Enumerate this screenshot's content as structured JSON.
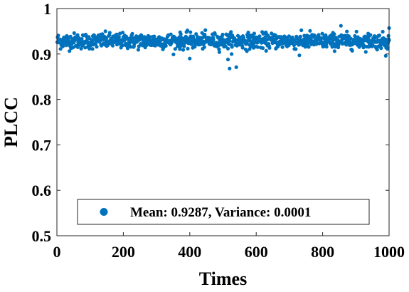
{
  "chart_data": {
    "type": "scatter",
    "xlabel": "Times",
    "ylabel": "PLCC",
    "xlim": [
      0,
      1000
    ],
    "ylim": [
      0.5,
      1.0
    ],
    "xticks": [
      0,
      200,
      400,
      600,
      800,
      1000
    ],
    "xtick_labels": [
      "0",
      "200",
      "400",
      "600",
      "800",
      "1000"
    ],
    "yticks": [
      0.5,
      0.6,
      0.7,
      0.8,
      0.9,
      1.0
    ],
    "ytick_labels": [
      "0.5",
      "0.6",
      "0.7",
      "0.8",
      "0.9",
      "1"
    ],
    "grid": false,
    "box": true,
    "legend_position": "bottom-right",
    "marker_color": "#0072BD",
    "series": [
      {
        "name": "Mean: 0.9287, Variance: 0.0001",
        "n_points": 1000,
        "mean": 0.9287,
        "std": 0.01,
        "y_range_observed": [
          0.868,
          0.962
        ],
        "notable_points": [
          {
            "x": 520,
            "y": 0.868
          },
          {
            "x": 540,
            "y": 0.871
          },
          {
            "x": 515,
            "y": 0.888
          },
          {
            "x": 400,
            "y": 0.89
          },
          {
            "x": 855,
            "y": 0.962
          },
          {
            "x": 1000,
            "y": 0.957
          },
          {
            "x": 990,
            "y": 0.896
          },
          {
            "x": 730,
            "y": 0.897
          }
        ]
      }
    ]
  }
}
